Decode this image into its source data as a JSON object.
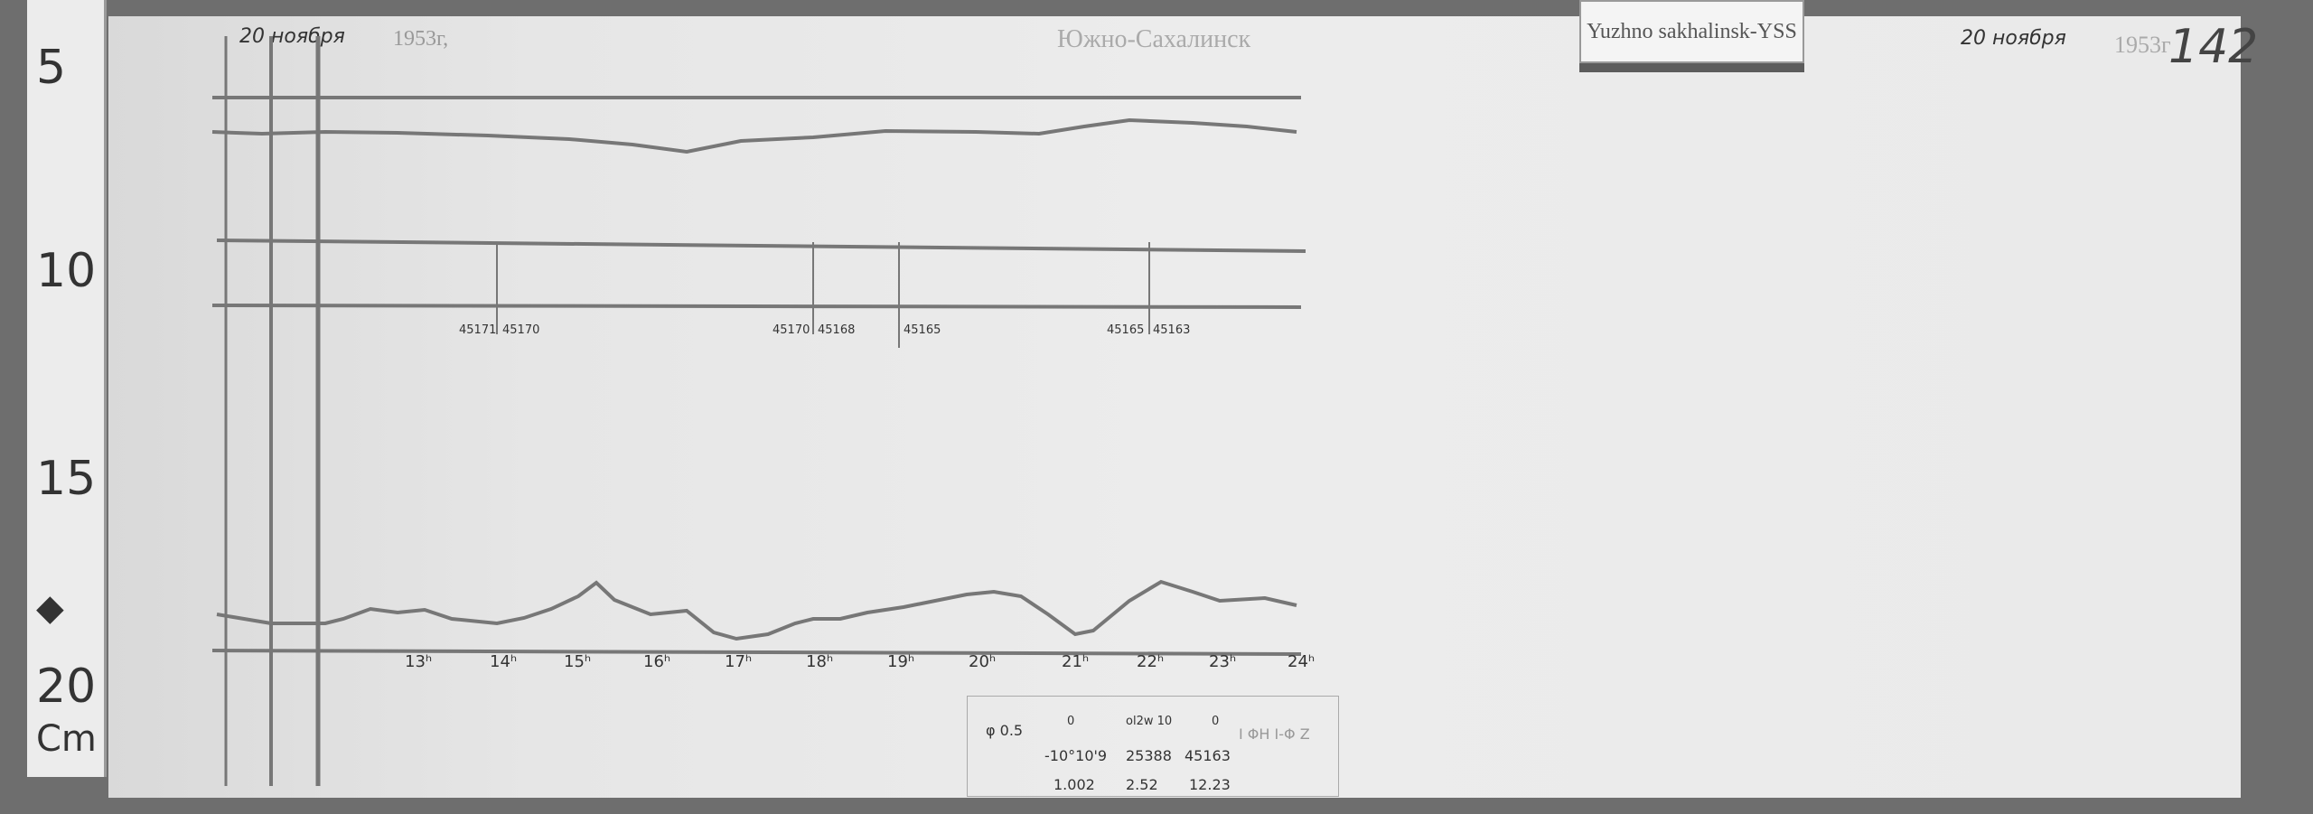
{
  "ruler": {
    "marks": [
      "5",
      "10",
      "15",
      "20"
    ],
    "unit": "Cm"
  },
  "header": {
    "date_left": "20 ноября",
    "year_left": "1953г,",
    "station_ru": "Южно-Сахалинск",
    "station_tag": "Yuzhno sakhalinsk-YSS",
    "date_right": "20 ноября",
    "year_right": "1953г",
    "sheet_number": "142"
  },
  "hour_labels": [
    "13ʰ",
    "14ʰ",
    "15ʰ",
    "16ʰ",
    "17ʰ",
    "18ʰ",
    "19ʰ",
    "20ʰ",
    "21ʰ",
    "22ʰ",
    "23ʰ",
    "24ʰ"
  ],
  "mark_labels": [
    "45171",
    "45170",
    "45170",
    "45168",
    "45165",
    "45165",
    "45163"
  ],
  "table": {
    "row1": [
      "φ 0.5",
      "0",
      "ol2w 10",
      "0",
      "I ΦH I-Φ Z"
    ],
    "row2": [
      "-10°10'9",
      "25388",
      "45163"
    ],
    "row3": [
      "1.002",
      "2.52",
      "12.23"
    ]
  }
}
